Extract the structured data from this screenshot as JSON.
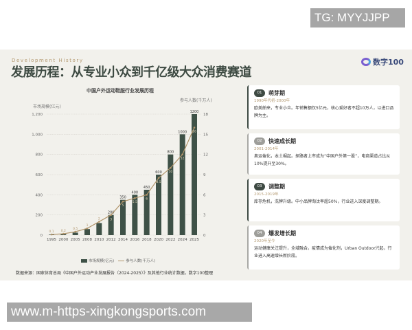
{
  "watermark": "TG: MYYJJPP",
  "url_banner": "www.m-https-xingkongsports.com",
  "header": {
    "eyebrow": "Development History",
    "title": "发展历程：从专业小众到千亿级大众消费赛道",
    "logo_text": "数字100"
  },
  "chart_data": {
    "type": "bar+line",
    "title": "中国户外运动鞋服行业发展历程",
    "ylabel_left": "市场规模(亿元)",
    "ylabel_right": "参与人数(千万人)",
    "categories": [
      "1995",
      "2000",
      "2005",
      "2008",
      "2010",
      "2012",
      "2014",
      "2016",
      "2018",
      "2020",
      "2022",
      "2024",
      "2025"
    ],
    "series": [
      {
        "name": "市场规模(亿元)",
        "type": "bar",
        "axis": "left",
        "color": "#3e5147",
        "values": [
          5,
          10,
          25,
          60,
          120,
          200,
          350,
          400,
          450,
          600,
          800,
          1000,
          1200
        ]
      },
      {
        "name": "参与人数(千万人)",
        "type": "line",
        "axis": "right",
        "color": "#b0946a",
        "values": [
          0.1,
          0.2,
          0.5,
          1,
          2,
          3,
          5,
          5.5,
          6,
          8.5,
          10,
          12,
          16
        ]
      }
    ],
    "bar_labels": [
      "",
      "",
      "",
      "",
      "",
      "200",
      "350",
      "400",
      "450",
      "600",
      "800",
      "1000",
      "1200"
    ],
    "ylim_left": [
      0,
      1200
    ],
    "yticks_left": [
      "0",
      "200",
      "400",
      "600",
      "800",
      "1,000",
      "1,200"
    ],
    "ylim_right": [
      0,
      18
    ],
    "yticks_right": [
      "0",
      "3",
      "6",
      "9",
      "12",
      "15",
      "18"
    ],
    "grid": true,
    "legend": "bottom"
  },
  "source": "数据来源：国家体育总局《中国户外运动产业发展报告（2024-2025）》及其他行业统计数据，数字100整理",
  "stages": [
    {
      "num": "01",
      "name": "萌芽期",
      "years": "1990年代初-2000年",
      "desc": "欧美舶来，专业小众。年销售额仅5亿元，核心爱好者不超10万人，以进口品牌为主。"
    },
    {
      "num": "02",
      "name": "快速成长期",
      "years": "2001-2014年",
      "desc": "奥运催化，本土崛起。探路者上市成为“中国户外第一股”，电商渠道占比从10%提升至30%。"
    },
    {
      "num": "03",
      "name": "调整期",
      "years": "2015-2019年",
      "desc": "库存危机，洗牌升级。中小品牌淘汰率超50%，行业进入深度调整期。"
    },
    {
      "num": "04",
      "name": "爆发增长期",
      "years": "2020年至今",
      "desc": "运动健康关注提升，全域融合。疫情成为催化剂，Urban Outdoor兴起，行业进入高速增长新阶段。"
    }
  ]
}
